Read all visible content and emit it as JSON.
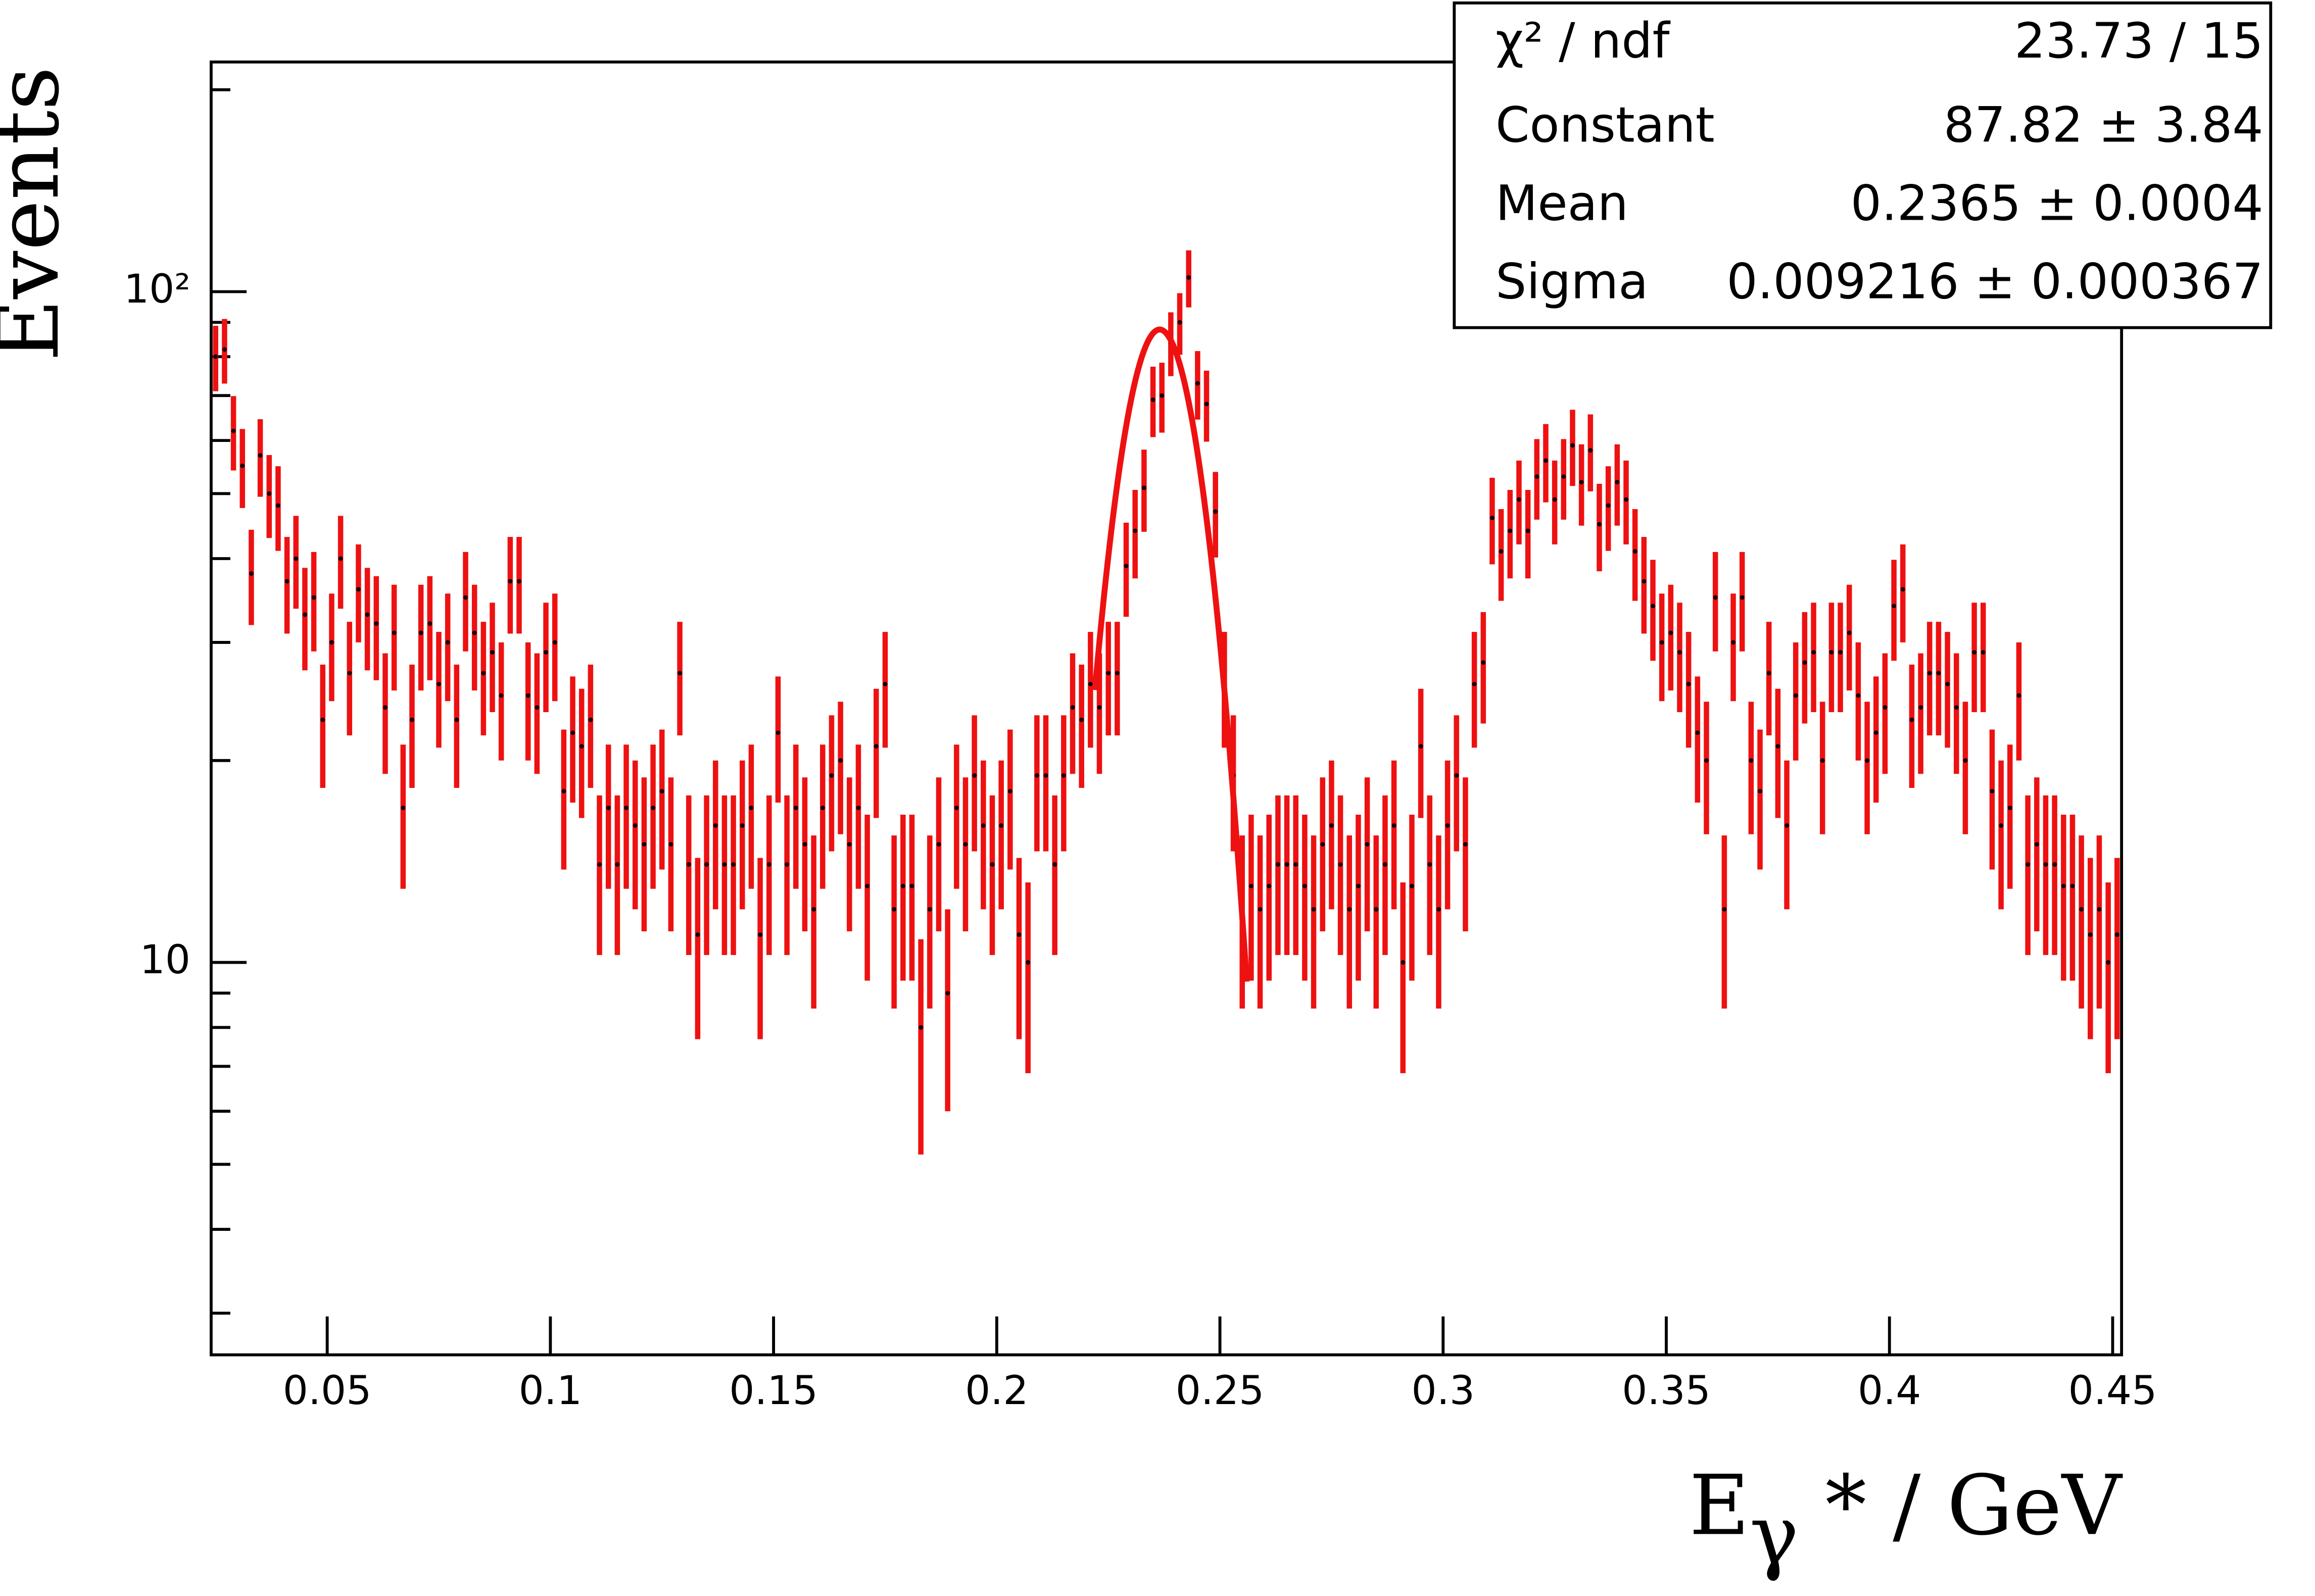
{
  "chart_data": {
    "type": "histogram",
    "y_label": "Events",
    "x_label": {
      "base": "E",
      "sub": "γ",
      "rest": " * / GeV"
    },
    "bins": [
      0.024,
      0.026,
      0.028,
      0.03,
      0.032,
      0.034,
      0.036,
      0.038,
      0.04,
      0.042,
      0.044,
      0.046,
      0.048,
      0.05,
      0.052,
      0.054,
      0.056,
      0.058,
      0.06,
      0.062,
      0.064,
      0.066,
      0.068,
      0.07,
      0.072,
      0.074,
      0.076,
      0.078,
      0.08,
      0.082,
      0.084,
      0.086,
      0.088,
      0.09,
      0.092,
      0.094,
      0.096,
      0.098,
      0.1,
      0.102,
      0.104,
      0.106,
      0.108,
      0.11,
      0.112,
      0.114,
      0.116,
      0.118,
      0.12,
      0.122,
      0.124,
      0.126,
      0.128,
      0.13,
      0.132,
      0.134,
      0.136,
      0.138,
      0.14,
      0.142,
      0.144,
      0.146,
      0.148,
      0.15,
      0.152,
      0.154,
      0.156,
      0.158,
      0.16,
      0.162,
      0.164,
      0.166,
      0.168,
      0.17,
      0.172,
      0.174,
      0.176,
      0.178,
      0.18,
      0.182,
      0.184,
      0.186,
      0.188,
      0.19,
      0.192,
      0.194,
      0.196,
      0.198,
      0.2,
      0.202,
      0.204,
      0.206,
      0.208,
      0.21,
      0.212,
      0.214,
      0.216,
      0.218,
      0.22,
      0.222,
      0.224,
      0.226,
      0.228,
      0.23,
      0.232,
      0.234,
      0.236,
      0.238,
      0.24,
      0.242,
      0.244,
      0.246,
      0.248,
      0.25,
      0.252,
      0.254,
      0.256,
      0.258,
      0.26,
      0.262,
      0.264,
      0.266,
      0.268,
      0.27,
      0.272,
      0.274,
      0.276,
      0.278,
      0.28,
      0.282,
      0.284,
      0.286,
      0.288,
      0.29,
      0.292,
      0.294,
      0.296,
      0.298,
      0.3,
      0.302,
      0.304,
      0.306,
      0.308,
      0.31,
      0.312,
      0.314,
      0.316,
      0.318,
      0.32,
      0.322,
      0.324,
      0.326,
      0.328,
      0.33,
      0.332,
      0.334,
      0.336,
      0.338,
      0.34,
      0.342,
      0.344,
      0.346,
      0.348,
      0.35,
      0.352,
      0.354,
      0.356,
      0.358,
      0.36,
      0.362,
      0.364,
      0.366,
      0.368,
      0.37,
      0.372,
      0.374,
      0.376,
      0.378,
      0.38,
      0.382,
      0.384,
      0.386,
      0.388,
      0.39,
      0.392,
      0.394,
      0.396,
      0.398,
      0.4,
      0.402,
      0.404,
      0.406,
      0.408,
      0.41,
      0.412,
      0.414,
      0.416,
      0.418,
      0.42,
      0.422,
      0.424,
      0.426,
      0.428,
      0.43,
      0.432,
      0.434,
      0.436,
      0.438,
      0.44,
      0.442,
      0.444,
      0.446,
      0.448,
      0.45,
      0.452
    ],
    "values": [
      80,
      82,
      62,
      55,
      38,
      57,
      50,
      48,
      37,
      40,
      33,
      35,
      23,
      30,
      40,
      27,
      36,
      33,
      32,
      24,
      31,
      17,
      23,
      31,
      32,
      26,
      30,
      23,
      35,
      31,
      27,
      29,
      25,
      37,
      37,
      25,
      24,
      29,
      30,
      18,
      22,
      21,
      23,
      14,
      17,
      14,
      17,
      16,
      15,
      17,
      18,
      15,
      27,
      14,
      11,
      14,
      16,
      14,
      14,
      16,
      17,
      11,
      14,
      22,
      14,
      17,
      15,
      12,
      17,
      19,
      20,
      15,
      17,
      13,
      21,
      26,
      12,
      13,
      13,
      8,
      12,
      15,
      9,
      17,
      15,
      19,
      16,
      14,
      16,
      18,
      11,
      10,
      19,
      19,
      14,
      19,
      24,
      23,
      26,
      24,
      27,
      27,
      39,
      44,
      51,
      69,
      70,
      84,
      90,
      105,
      73,
      68,
      47,
      26,
      19,
      12,
      13,
      12,
      13,
      14,
      14,
      14,
      13,
      12,
      15,
      16,
      14,
      12,
      13,
      15,
      12,
      14,
      16,
      10,
      13,
      21,
      14,
      12,
      16,
      19,
      15,
      26,
      28,
      46,
      41,
      44,
      49,
      44,
      53,
      56,
      49,
      53,
      59,
      52,
      58,
      45,
      48,
      52,
      49,
      41,
      37,
      34,
      30,
      31,
      29,
      26,
      22,
      20,
      35,
      12,
      30,
      35,
      20,
      18,
      27,
      21,
      16,
      25,
      28,
      29,
      20,
      29,
      29,
      31,
      25,
      20,
      22,
      24,
      34,
      36,
      23,
      24,
      27,
      27,
      26,
      24,
      20,
      29,
      29,
      18,
      16,
      17,
      25,
      14,
      15,
      14,
      14,
      13,
      13,
      12,
      11,
      12,
      10,
      11
    ],
    "error_bars": "sqrt",
    "color": "#ee1111",
    "marker_color": "#000000",
    "fit": {
      "function": "gaus",
      "constant": 87.82,
      "mean": 0.2365,
      "sigma": 0.009216,
      "xmin": 0.222,
      "xmax": 0.256,
      "color": "#ee1111"
    },
    "xlim": [
      0.024,
      0.452
    ],
    "ylim": [
      2.6,
      220
    ],
    "log_y": true,
    "xticks": [
      0.05,
      0.1,
      0.15,
      0.2,
      0.25,
      0.3,
      0.35,
      0.4,
      0.45
    ],
    "yticks": [
      {
        "value": 10,
        "label": "10"
      },
      {
        "value": 100,
        "label": "10²"
      }
    ],
    "yminorticks": [
      3,
      4,
      5,
      6,
      7,
      8,
      9,
      20,
      30,
      40,
      50,
      60,
      70,
      80,
      90,
      200
    ],
    "stats_box": [
      [
        "χ² / ndf",
        "23.73 / 15"
      ],
      [
        "Constant",
        "87.82 ± 3.84"
      ],
      [
        "Mean",
        "0.2365 ± 0.0004"
      ],
      [
        "Sigma",
        "0.009216 ± 0.000367"
      ]
    ]
  }
}
